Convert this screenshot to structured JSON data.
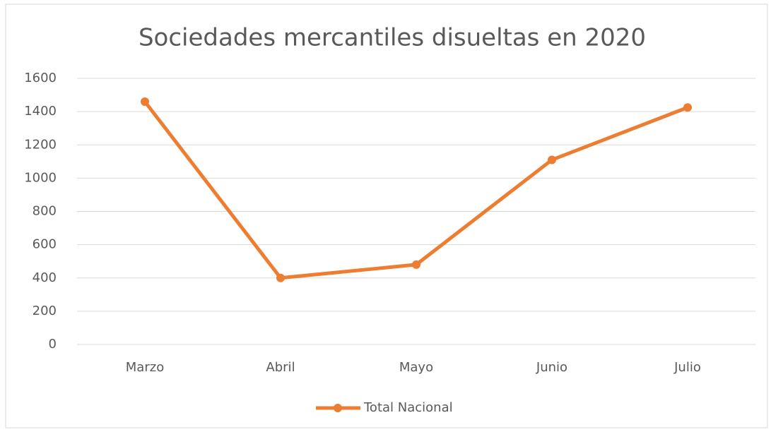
{
  "chart_data": {
    "type": "line",
    "title": "Sociedades mercantiles disueltas en 2020",
    "categories": [
      "Marzo",
      "Abril",
      "Mayo",
      "Junio",
      "Julio"
    ],
    "series": [
      {
        "name": "Total Nacional",
        "color": "#ed7d31",
        "values": [
          1460,
          400,
          480,
          1110,
          1425
        ]
      }
    ],
    "ylim": [
      0,
      1600
    ],
    "yticks": [
      0,
      200,
      400,
      600,
      800,
      1000,
      1200,
      1400,
      1600
    ],
    "grid": true,
    "legend": "bottom"
  }
}
